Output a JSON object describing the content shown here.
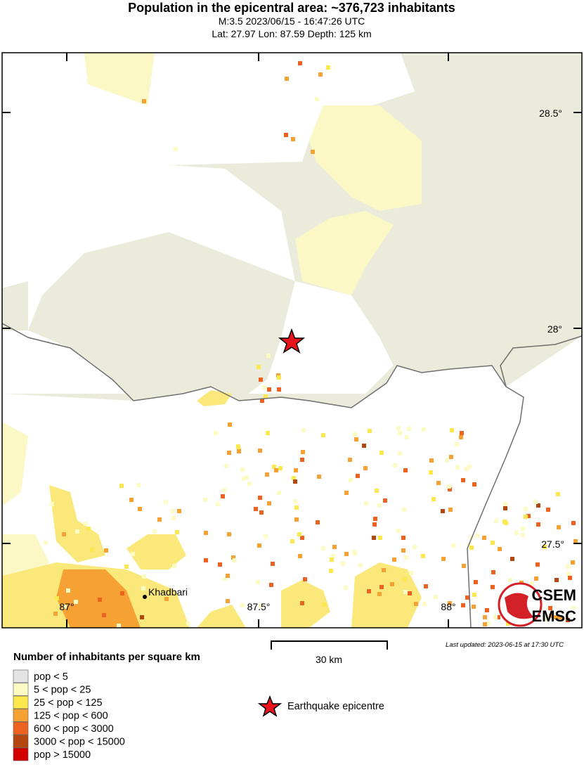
{
  "header": {
    "title": "Population in the epicentral area: ~376,723 inhabitants",
    "event": "M:3.5 2023/06/15 - 16:47:26 UTC",
    "location": "Lat: 27.97 Lon: 87.59 Depth: 125 km"
  },
  "map": {
    "lat_labels": [
      "28.5°",
      "28°",
      "27.5°"
    ],
    "lon_labels": [
      "87°",
      "87.5°",
      "88°"
    ],
    "city": "Khadbari",
    "logo": [
      "CSEM",
      "EMSC"
    ]
  },
  "scale": "30 km",
  "last_updated": "Last updated: 2023-06-15 at 17:30 UTC",
  "legend": {
    "title": "Number of inhabitants per square km",
    "items": [
      {
        "label": "pop < 5",
        "color": "#e4e4e4"
      },
      {
        "label": "5 < pop < 25",
        "color": "#fdfbc4"
      },
      {
        "label": "25 < pop < 125",
        "color": "#fbe84c"
      },
      {
        "label": "125 < pop < 600",
        "color": "#f6a133"
      },
      {
        "label": "600 < pop < 3000",
        "color": "#ee6220"
      },
      {
        "label": "3000 < pop < 15000",
        "color": "#b4460f"
      },
      {
        "label": "pop > 15000",
        "color": "#d40000"
      }
    ]
  },
  "epicentre_label": "Earthquake epicentre"
}
